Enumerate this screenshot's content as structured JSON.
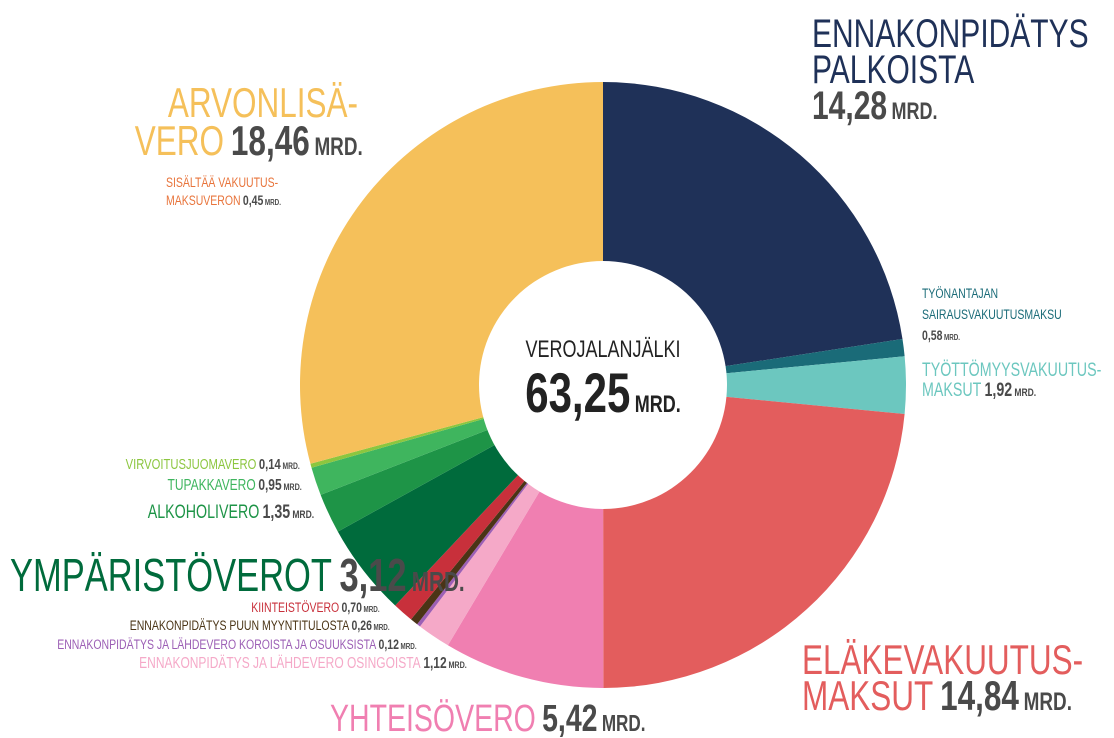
{
  "chart_data": {
    "type": "donut",
    "center_title": "VEROJALANJÄLKI",
    "center_label": "63,25",
    "unit": "MRD.",
    "categories": [
      "ENNAKONPIDÄTYS\nPALKOISTA",
      "TYÖNANTAJAN\nSAIRAUSVAKUUTUSMAKSU",
      "TYÖTTÖMYYSVAKUUTUS-\nMAKSUT",
      "ELÄKEVAKUUTUS-\nMAKSUT",
      "YHTEISÖVERO",
      "ENNAKONPIDÄTYS JA LÄHDEVERO OSINGOISTA",
      "ENNAKONPIDÄTYS JA LÄHDEVERO KOROISTA JA OSUUKSISTA",
      "ENNAKONPIDÄTYS PUUN MYYNTITULOSTA",
      "KIINTEISTÖVERO",
      "YMPÄRISTÖVEROT",
      "ALKOHOLIVERO",
      "TUPAKKAVERO",
      "VIRVOITUSJUOMAVERO",
      "ARVONLISÄ-\nVERO"
    ],
    "values": [
      14.28,
      0.58,
      1.92,
      14.84,
      5.42,
      1.12,
      0.12,
      0.26,
      0.7,
      3.12,
      1.35,
      0.95,
      0.14,
      18.46
    ],
    "value_labels": [
      "14,28",
      "0,58",
      "1,92",
      "14,84",
      "5,42",
      "1,12",
      "0,12",
      "0,26",
      "0,70",
      "3,12",
      "1,35",
      "0,95",
      "0,14",
      "18,46"
    ],
    "colors": [
      "#1f3158",
      "#1a6b78",
      "#6cc7bf",
      "#e35d5d",
      "#f07fb1",
      "#f5a9c8",
      "#9c5fb5",
      "#4a3416",
      "#c8303b",
      "#006b3c",
      "#1e9447",
      "#3fb55e",
      "#8cc63f",
      "#f5c05a"
    ],
    "annotation": {
      "text": "SISÄLTÄÄ VAKUUTUS-\nMAKSUVERON",
      "label": "0,45",
      "value": 0.45,
      "color": "#e8743b"
    }
  }
}
